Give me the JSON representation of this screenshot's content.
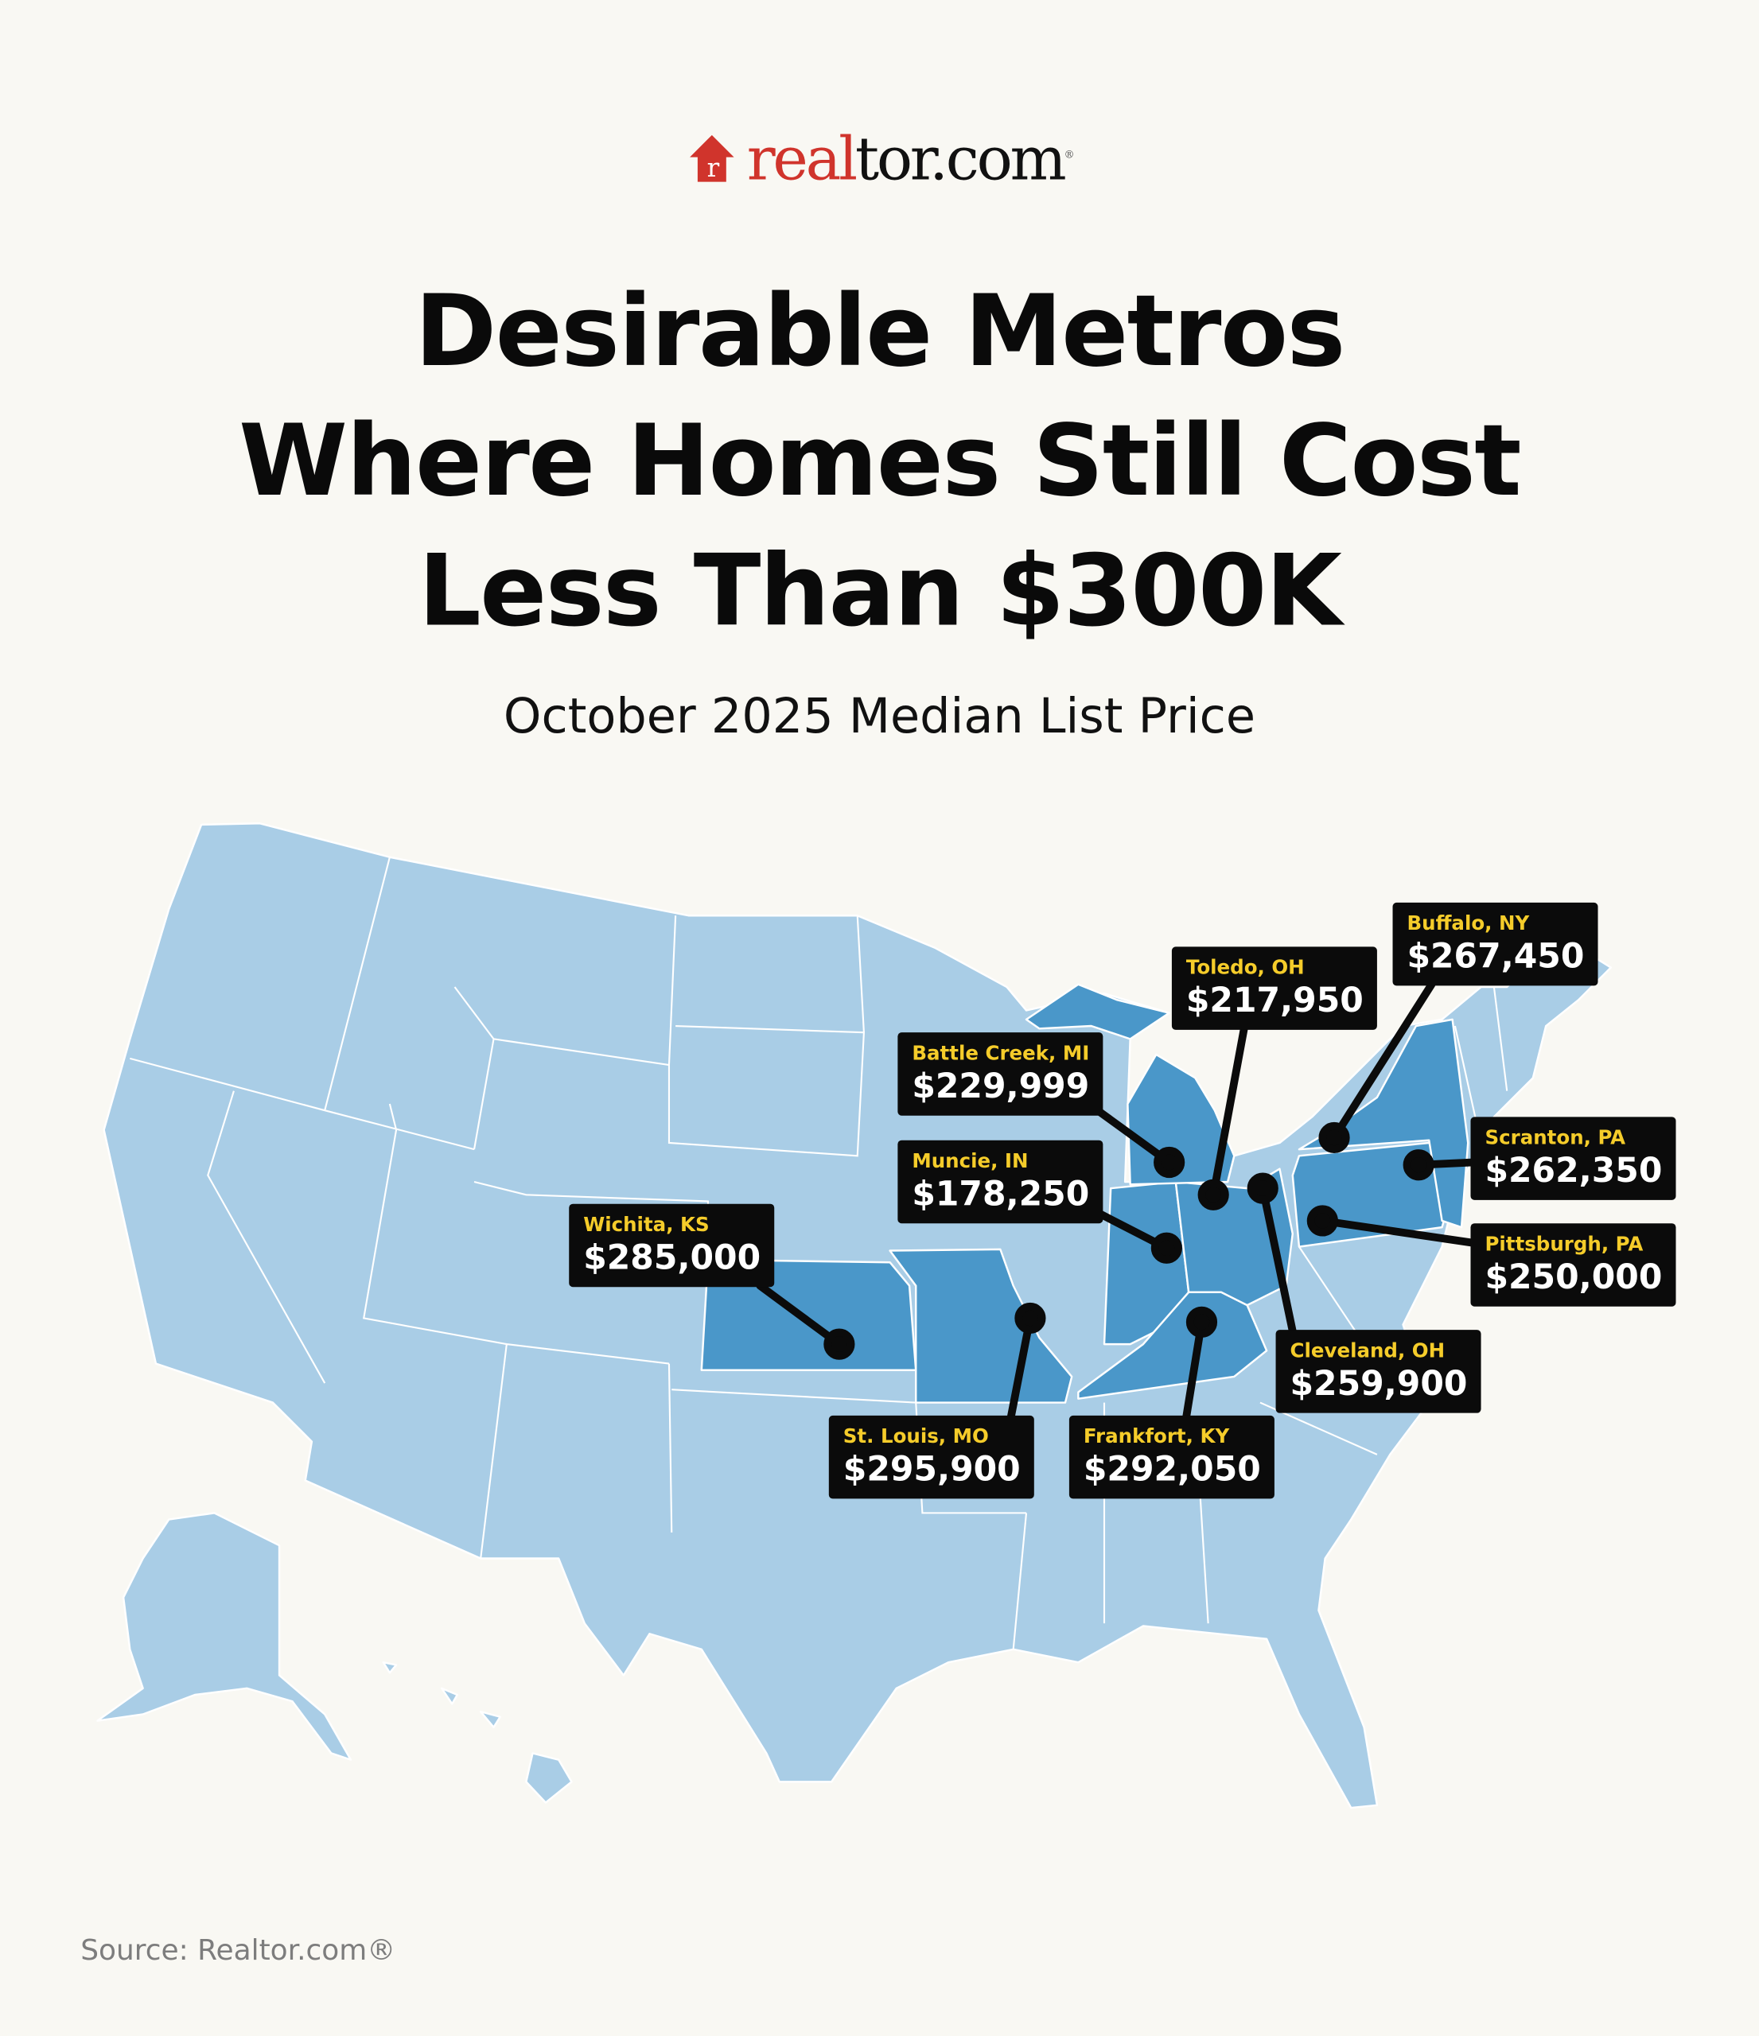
{
  "brand": {
    "logo_text_red": "real",
    "logo_text_black": "tor.com",
    "logo_mark": "®",
    "colors": {
      "red": "#d0342c",
      "black": "#111111"
    }
  },
  "title_lines": [
    "Desirable Metros",
    "Where Homes Still Cost",
    "Less Than $300K"
  ],
  "subtitle": "October 2025 Median List Price",
  "colors": {
    "background": "#f9f8f3",
    "state_base": "#a9cde6",
    "state_highlight": "#4a97c9",
    "callout_bg": "#0b0b0b",
    "city_text": "#f5cc2a",
    "price_text": "#ffffff"
  },
  "highlighted_states": [
    "Kansas",
    "Missouri",
    "Indiana",
    "Ohio",
    "Kentucky",
    "Michigan",
    "Pennsylvania",
    "New York"
  ],
  "metros": [
    {
      "city": "Wichita, KS",
      "price": "$285,000"
    },
    {
      "city": "St. Louis, MO",
      "price": "$295,900"
    },
    {
      "city": "Muncie, IN",
      "price": "$178,250"
    },
    {
      "city": "Battle Creek, MI",
      "price": "$229,999"
    },
    {
      "city": "Toledo, OH",
      "price": "$217,950"
    },
    {
      "city": "Buffalo, NY",
      "price": "$267,450"
    },
    {
      "city": "Scranton, PA",
      "price": "$262,350"
    },
    {
      "city": "Pittsburgh, PA",
      "price": "$250,000"
    },
    {
      "city": "Cleveland, OH",
      "price": "$259,900"
    },
    {
      "city": "Frankfort, KY",
      "price": "$292,050"
    }
  ],
  "source": "Source: Realtor.com®"
}
